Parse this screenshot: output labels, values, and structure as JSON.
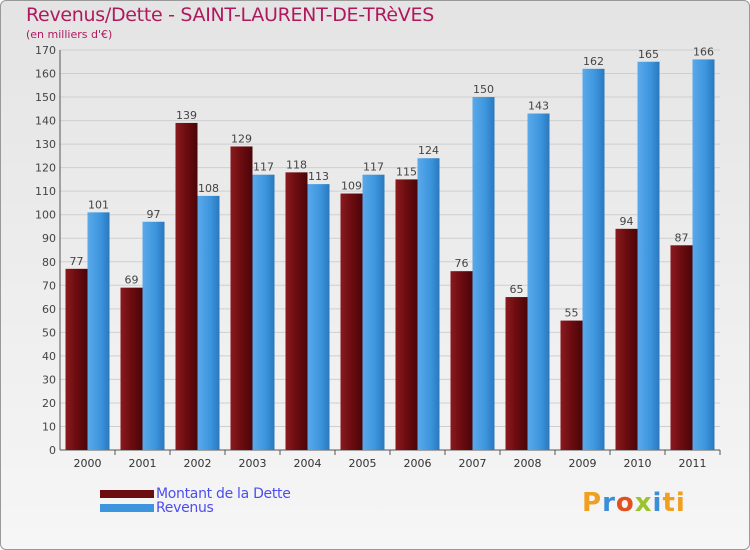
{
  "title": "Revenus/Dette - SAINT-LAURENT-DE-TRèVES",
  "subtitle": "(en milliers d'€)",
  "logo": {
    "text": "Proxiti",
    "letters": [
      "P",
      "r",
      "o",
      "x",
      "i",
      "ti"
    ]
  },
  "colors": {
    "dette": "#6b0c10",
    "revenus": "#3c95dd",
    "title": "#b0195d",
    "legend_text": "#4d4df0"
  },
  "chart_data": {
    "type": "bar",
    "title": "Revenus/Dette - SAINT-LAURENT-DE-TRèVES",
    "ylabel": "(en milliers d'€)",
    "xlabel": "",
    "ylim": [
      0,
      170
    ],
    "ytick_step": 10,
    "grid": true,
    "categories": [
      "2000",
      "2001",
      "2002",
      "2003",
      "2004",
      "2005",
      "2006",
      "2007",
      "2008",
      "2009",
      "2010",
      "2011"
    ],
    "series": [
      {
        "name": "Montant de la Dette",
        "values": [
          77,
          69,
          139,
          129,
          118,
          109,
          115,
          76,
          65,
          55,
          94,
          87
        ]
      },
      {
        "name": "Revenus",
        "values": [
          101,
          97,
          108,
          117,
          113,
          117,
          124,
          150,
          143,
          162,
          165,
          166
        ]
      }
    ],
    "legend_position": "bottom-left"
  }
}
